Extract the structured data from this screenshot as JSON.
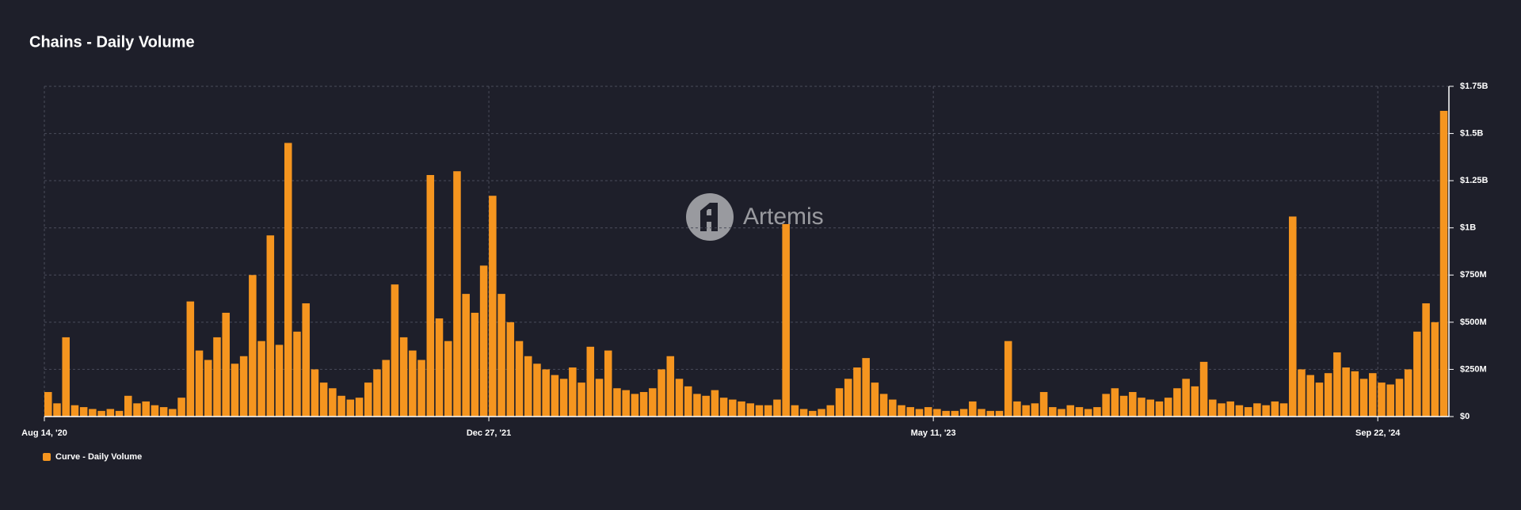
{
  "chart_data": {
    "type": "bar",
    "title": "Chains - Daily Volume",
    "watermark": "Artemis",
    "categories": [
      "Aug 14, '20",
      null,
      null,
      null,
      null,
      null,
      null,
      null,
      null,
      null,
      null,
      null,
      null,
      null,
      null,
      null,
      null,
      null,
      null,
      null,
      null,
      null,
      null,
      null,
      null,
      null,
      null,
      null,
      null,
      null,
      null,
      null,
      null,
      null,
      null,
      null,
      null,
      null,
      null,
      null,
      null,
      null,
      null,
      null,
      null,
      null,
      null,
      null,
      null,
      null,
      "Dec 27, '21",
      null,
      null,
      null,
      null,
      null,
      null,
      null,
      null,
      null,
      null,
      null,
      null,
      null,
      null,
      null,
      null,
      null,
      null,
      null,
      null,
      null,
      null,
      null,
      null,
      null,
      null,
      null,
      null,
      null,
      null,
      null,
      null,
      null,
      null,
      null,
      null,
      null,
      null,
      null,
      null,
      null,
      null,
      null,
      null,
      null,
      null,
      null,
      null,
      null,
      "May 11, '23",
      null,
      null,
      null,
      null,
      null,
      null,
      null,
      null,
      null,
      null,
      null,
      null,
      null,
      null,
      null,
      null,
      null,
      null,
      null,
      null,
      null,
      null,
      null,
      null,
      null,
      null,
      null,
      null,
      null,
      null,
      null,
      null,
      null,
      null,
      null,
      null,
      null,
      null,
      null,
      null,
      null,
      null,
      null,
      null,
      null,
      null,
      null,
      null,
      null,
      "Sep 22, '24",
      null,
      null,
      null,
      null,
      null,
      null,
      null
    ],
    "series": [
      {
        "name": "Curve - Daily Volume",
        "color": "#f5951f",
        "values": [
          130000000,
          70000000,
          420000000,
          60000000,
          50000000,
          40000000,
          30000000,
          40000000,
          30000000,
          110000000,
          70000000,
          80000000,
          60000000,
          50000000,
          40000000,
          100000000,
          610000000,
          350000000,
          300000000,
          420000000,
          550000000,
          280000000,
          320000000,
          750000000,
          400000000,
          960000000,
          380000000,
          1450000000,
          450000000,
          600000000,
          250000000,
          180000000,
          150000000,
          110000000,
          90000000,
          100000000,
          180000000,
          250000000,
          300000000,
          700000000,
          420000000,
          350000000,
          300000000,
          1280000000,
          520000000,
          400000000,
          1300000000,
          650000000,
          550000000,
          800000000,
          1170000000,
          650000000,
          500000000,
          400000000,
          320000000,
          280000000,
          250000000,
          220000000,
          200000000,
          260000000,
          180000000,
          370000000,
          200000000,
          350000000,
          150000000,
          140000000,
          120000000,
          130000000,
          150000000,
          250000000,
          320000000,
          200000000,
          160000000,
          120000000,
          110000000,
          140000000,
          100000000,
          90000000,
          80000000,
          70000000,
          60000000,
          60000000,
          90000000,
          1020000000,
          60000000,
          40000000,
          30000000,
          40000000,
          60000000,
          150000000,
          200000000,
          260000000,
          310000000,
          180000000,
          120000000,
          90000000,
          60000000,
          50000000,
          40000000,
          50000000,
          40000000,
          30000000,
          30000000,
          40000000,
          80000000,
          40000000,
          30000000,
          30000000,
          400000000,
          80000000,
          60000000,
          70000000,
          130000000,
          50000000,
          40000000,
          60000000,
          50000000,
          40000000,
          50000000,
          120000000,
          150000000,
          110000000,
          130000000,
          100000000,
          90000000,
          80000000,
          100000000,
          150000000,
          200000000,
          160000000,
          290000000,
          90000000,
          70000000,
          80000000,
          60000000,
          50000000,
          70000000,
          60000000,
          80000000,
          70000000,
          1060000000,
          250000000,
          220000000,
          180000000,
          230000000,
          340000000,
          260000000,
          240000000,
          200000000,
          230000000,
          180000000,
          170000000,
          200000000,
          250000000,
          450000000,
          600000000,
          500000000,
          1620000000
        ]
      }
    ],
    "ylim": [
      0,
      1750000000
    ],
    "yticks": [
      {
        "value": 0,
        "label": "$0"
      },
      {
        "value": 250000000,
        "label": "$250M"
      },
      {
        "value": 500000000,
        "label": "$500M"
      },
      {
        "value": 750000000,
        "label": "$750M"
      },
      {
        "value": 1000000000,
        "label": "$1B"
      },
      {
        "value": 1250000000,
        "label": "$1.25B"
      },
      {
        "value": 1500000000,
        "label": "$1.5B"
      },
      {
        "value": 1750000000,
        "label": "$1.75B"
      }
    ],
    "grid": true,
    "legend": "bottom-left"
  }
}
